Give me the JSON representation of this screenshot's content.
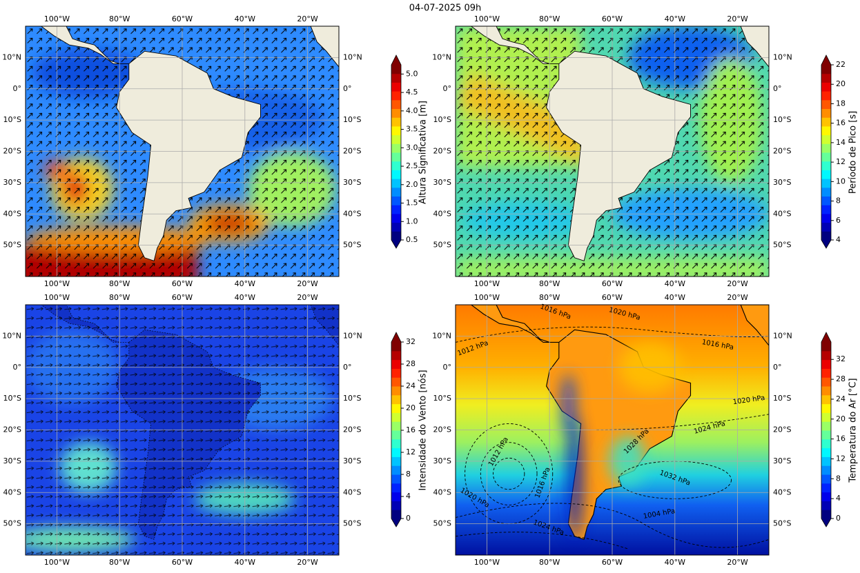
{
  "title": "04-07-2025 09h",
  "map": {
    "lonlim": [
      -110,
      -10
    ],
    "latlim": [
      -60,
      20
    ],
    "lon_ticks": [
      {
        "value": -100,
        "label": "100°W"
      },
      {
        "value": -80,
        "label": "80°W"
      },
      {
        "value": -60,
        "label": "60°W"
      },
      {
        "value": -40,
        "label": "40°W"
      },
      {
        "value": -20,
        "label": "20°W"
      }
    ],
    "lat_ticks": [
      {
        "value": 10,
        "label": "10°N"
      },
      {
        "value": 0,
        "label": "0°"
      },
      {
        "value": -10,
        "label": "10°S"
      },
      {
        "value": -20,
        "label": "20°S"
      },
      {
        "value": -30,
        "label": "30°S"
      },
      {
        "value": -40,
        "label": "40°S"
      },
      {
        "value": -50,
        "label": "50°S"
      }
    ]
  },
  "panels": [
    {
      "colorbar_label": "Altura Significativa [m]",
      "clim": [
        0.5,
        5.25
      ],
      "cticks": [
        0.5,
        {
          "value": 1,
          "label": "1.0"
        },
        1.5,
        {
          "value": 2,
          "label": "2.0"
        },
        2.5,
        {
          "value": 3,
          "label": "3.0"
        },
        3.5,
        {
          "value": 4,
          "label": "4.0"
        },
        4.5,
        {
          "value": 5,
          "label": "5.0"
        }
      ]
    },
    {
      "colorbar_label": "Período de Pico [s]",
      "clim": [
        4,
        22
      ],
      "cticks": [
        4,
        6,
        8,
        10,
        12,
        14,
        16,
        18,
        20,
        22
      ]
    },
    {
      "colorbar_label": "Intensidade do Vento [nós]",
      "clim": [
        0,
        32
      ],
      "cticks": [
        0,
        4,
        8,
        12,
        16,
        20,
        24,
        28,
        32
      ]
    },
    {
      "colorbar_label": "Temperatura do Ar [°C]",
      "clim": [
        0,
        35.5
      ],
      "cticks": [
        0,
        4,
        8,
        12,
        16,
        20,
        24,
        28,
        32
      ]
    }
  ],
  "contour_labels": [
    "1016 hPa",
    "1020 hPa",
    "1012 hPa",
    "1016 hPa",
    "1020 hPa",
    "1024 hPa",
    "1028 hPa",
    "1012 hPa",
    "1016 hPa",
    "1032 hPa",
    "1020 hPa",
    "1004 hPa",
    "1024 hPa"
  ]
}
